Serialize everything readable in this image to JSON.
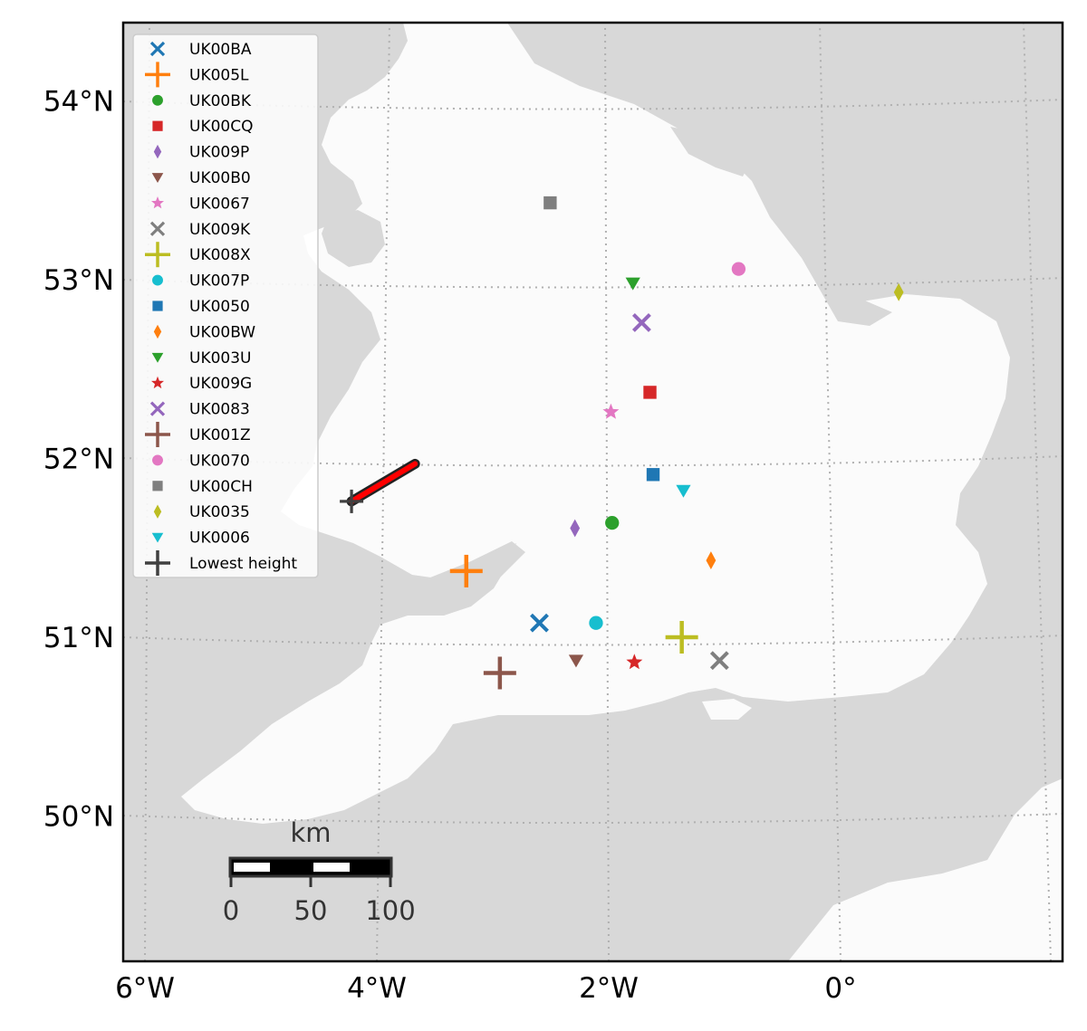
{
  "chart_data": {
    "type": "map",
    "title": "",
    "x_axis": {
      "ticks": [
        {
          "value": -6,
          "label": "6°W"
        },
        {
          "value": -4,
          "label": "4°W"
        },
        {
          "value": -2,
          "label": "2°W"
        },
        {
          "value": 0,
          "label": "0°"
        }
      ]
    },
    "y_axis": {
      "ticks": [
        {
          "value": 50,
          "label": "50°N"
        },
        {
          "value": 51,
          "label": "51°N"
        },
        {
          "value": 52,
          "label": "52°N"
        },
        {
          "value": 53,
          "label": "53°N"
        },
        {
          "value": 54,
          "label": "54°N"
        }
      ]
    },
    "grid": true,
    "legend_position": "top-left",
    "stations": [
      {
        "name": "UK00BA",
        "marker": "x",
        "color": "#1f77b4",
        "lon": -2.6,
        "lat": 51.08
      },
      {
        "name": "UK005L",
        "marker": "plus",
        "color": "#ff7f0e",
        "lon": -3.25,
        "lat": 51.37
      },
      {
        "name": "UK00BK",
        "marker": "circle",
        "color": "#2ca02c",
        "lon": -1.97,
        "lat": 51.64
      },
      {
        "name": "UK00CQ",
        "marker": "square",
        "color": "#d62728",
        "lon": -1.62,
        "lat": 52.37
      },
      {
        "name": "UK009P",
        "marker": "diamond",
        "color": "#9467bd",
        "lon": -2.3,
        "lat": 51.61
      },
      {
        "name": "UK00B0",
        "marker": "triangle-down",
        "color": "#8c564b",
        "lon": -2.28,
        "lat": 50.87
      },
      {
        "name": "UK0067",
        "marker": "star",
        "color": "#e377c2",
        "lon": -1.98,
        "lat": 52.26
      },
      {
        "name": "UK009K",
        "marker": "x",
        "color": "#7f7f7f",
        "lon": -1.05,
        "lat": 50.87
      },
      {
        "name": "UK008X",
        "marker": "plus",
        "color": "#bcbd22",
        "lon": -1.37,
        "lat": 51.0
      },
      {
        "name": "UK007P",
        "marker": "circle",
        "color": "#17becf",
        "lon": -2.11,
        "lat": 51.08
      },
      {
        "name": "UK0050",
        "marker": "square",
        "color": "#1f77b4",
        "lon": -1.6,
        "lat": 51.91
      },
      {
        "name": "UK00BW",
        "marker": "diamond",
        "color": "#ff7f0e",
        "lon": -1.1,
        "lat": 51.43
      },
      {
        "name": "UK003U",
        "marker": "triangle-down",
        "color": "#2ca02c",
        "lon": -1.77,
        "lat": 52.98
      },
      {
        "name": "UK009G",
        "marker": "star",
        "color": "#d62728",
        "lon": -1.78,
        "lat": 50.86
      },
      {
        "name": "UK0083",
        "marker": "x",
        "color": "#9467bd",
        "lon": -1.69,
        "lat": 52.76
      },
      {
        "name": "UK001Z",
        "marker": "plus",
        "color": "#8c564b",
        "lon": -2.93,
        "lat": 50.8
      },
      {
        "name": "UK0070",
        "marker": "circle",
        "color": "#e377c2",
        "lon": -0.76,
        "lat": 53.06
      },
      {
        "name": "UK00CH",
        "marker": "square",
        "color": "#7f7f7f",
        "lon": -2.57,
        "lat": 53.43
      },
      {
        "name": "UK0035",
        "marker": "diamond",
        "color": "#bcbd22",
        "lon": 0.75,
        "lat": 52.93
      },
      {
        "name": "UK0006",
        "marker": "triangle-down",
        "color": "#17becf",
        "lon": -1.33,
        "lat": 51.82
      }
    ],
    "lowest_height": {
      "name": "Lowest height",
      "marker": "plus",
      "color": "#404040",
      "lon": -4.3,
      "lat": 51.76
    },
    "path": {
      "color": "#ff0000",
      "points": [
        {
          "lon": -4.3,
          "lat": 51.76
        },
        {
          "lon": -3.75,
          "lat": 51.97
        }
      ]
    },
    "scale_bar": {
      "unit": "km",
      "labels": [
        "0",
        "50",
        "100"
      ]
    }
  },
  "colors": {
    "land_highlight": "#fbfbfb",
    "land_other": "#d8d8d8",
    "gridline": "#b0b0b0"
  }
}
